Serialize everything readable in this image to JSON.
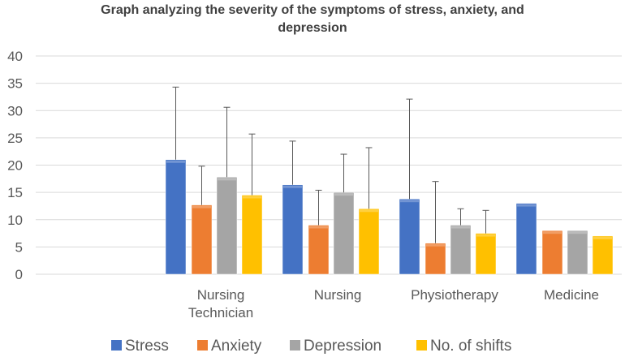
{
  "chart_data": {
    "type": "bar",
    "title_lines": [
      "Graph analyzing the severity of the symptoms of stress, anxiety, and",
      "depression"
    ],
    "categories": [
      [
        "Nursing",
        "Technician"
      ],
      [
        "Nursing"
      ],
      [
        "Physiotherapy"
      ],
      [
        "Medicine"
      ]
    ],
    "ylim": [
      0,
      40
    ],
    "yticks": [
      0,
      5,
      10,
      15,
      20,
      25,
      30,
      35,
      40
    ],
    "grid": true,
    "legend_position": "bottom",
    "series": [
      {
        "name": "Stress",
        "color": "#4472C4",
        "values": [
          21,
          16.4,
          13.8,
          13
        ],
        "error": [
          13.3,
          8,
          18.3,
          null
        ]
      },
      {
        "name": "Anxiety",
        "color": "#ED7D31",
        "values": [
          12.7,
          9,
          5.7,
          8
        ],
        "error": [
          7.1,
          6.4,
          11.3,
          null
        ]
      },
      {
        "name": "Depression",
        "color": "#A5A5A5",
        "values": [
          17.8,
          15,
          9,
          8
        ],
        "error": [
          12.8,
          7,
          3,
          null
        ]
      },
      {
        "name": "No. of shifts",
        "color": "#FFC000",
        "values": [
          14.5,
          12,
          7.5,
          7
        ],
        "error": [
          11.2,
          11.2,
          4.2,
          null
        ]
      }
    ]
  }
}
